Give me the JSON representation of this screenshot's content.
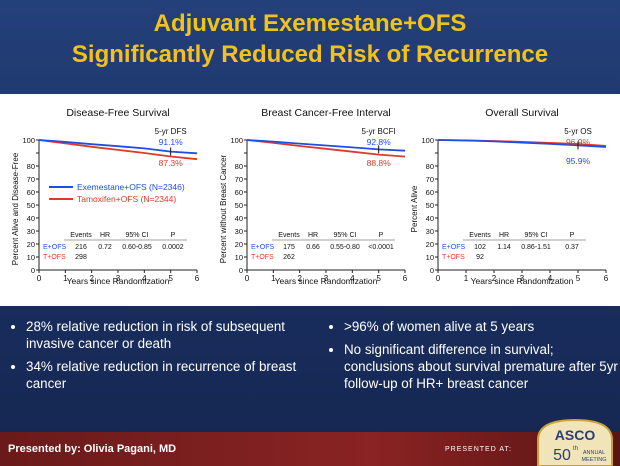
{
  "title_line1": "Adjuvant Exemestane+OFS",
  "title_line2": "Significantly Reduced Risk of Recurrence",
  "colors": {
    "title": "#f2c21b",
    "eofs": "#1f4fe0",
    "tofs": "#e0392b",
    "background": "#1f3569",
    "footer": "#7a1f1f"
  },
  "chart_data": [
    {
      "type": "line",
      "title": "Disease-Free Survival",
      "xlabel": "Years since Randomization",
      "ylabel": "Percent Alive and Disease-Free",
      "xlim": [
        0,
        6
      ],
      "ylim": [
        0,
        100
      ],
      "xticks": [
        "0",
        "1",
        "2",
        "3",
        "4",
        "5",
        "6"
      ],
      "yticks": [
        "0",
        "10",
        "20",
        "30",
        "40",
        "50",
        "60",
        "70",
        "80",
        "90",
        "100"
      ],
      "annotation_label": "5-yr DFS",
      "annotation_eofs": "91.1%",
      "annotation_tofs": "87.3%",
      "legend": [
        "Exemestane+OFS (N=2346)",
        "Tamoxifen+OFS (N=2344)"
      ],
      "series": [
        {
          "name": "E+OFS",
          "x": [
            0,
            1,
            2,
            3,
            4,
            5,
            6
          ],
          "y": [
            100,
            98.5,
            96.8,
            95.2,
            93.5,
            91.1,
            89.8
          ]
        },
        {
          "name": "T+OFS",
          "x": [
            0,
            1,
            2,
            3,
            4,
            5,
            6
          ],
          "y": [
            100,
            97.5,
            94.8,
            92.4,
            90.0,
            87.3,
            85.2
          ]
        }
      ],
      "table_header": [
        "Events",
        "HR",
        "95% CI",
        "P"
      ],
      "table_rows": [
        {
          "label": "E+OFS",
          "cells": [
            "216",
            "0.72",
            "0.60-0.85",
            "0.0002"
          ]
        },
        {
          "label": "T+OFS",
          "cells": [
            "298",
            "",
            "",
            ""
          ]
        }
      ]
    },
    {
      "type": "line",
      "title": "Breast Cancer-Free Interval",
      "xlabel": "Years since Randomization",
      "ylabel": "Percent without Breast Cancer",
      "xlim": [
        0,
        6
      ],
      "ylim": [
        0,
        100
      ],
      "xticks": [
        "0",
        "1",
        "2",
        "3",
        "4",
        "5",
        "6"
      ],
      "yticks": [
        "0",
        "10",
        "20",
        "30",
        "40",
        "50",
        "60",
        "70",
        "80",
        "90",
        "100"
      ],
      "annotation_label": "5-yr BCFI",
      "annotation_eofs": "92.8%",
      "annotation_tofs": "88.8%",
      "series": [
        {
          "name": "E+OFS",
          "x": [
            0,
            1,
            2,
            3,
            4,
            5,
            6
          ],
          "y": [
            100,
            98.8,
            97.2,
            95.8,
            94.3,
            92.8,
            91.8
          ]
        },
        {
          "name": "T+OFS",
          "x": [
            0,
            1,
            2,
            3,
            4,
            5,
            6
          ],
          "y": [
            100,
            97.8,
            95.4,
            93.2,
            91.0,
            88.8,
            87.2
          ]
        }
      ],
      "table_header": [
        "Events",
        "HR",
        "95% CI",
        "P"
      ],
      "table_rows": [
        {
          "label": "E+OFS",
          "cells": [
            "175",
            "0.66",
            "0.55-0.80",
            "<0.0001"
          ]
        },
        {
          "label": "T+OFS",
          "cells": [
            "262",
            "",
            "",
            ""
          ]
        }
      ]
    },
    {
      "type": "line",
      "title": "Overall Survival",
      "xlabel": "Years since Randomization",
      "ylabel": "Percent Alive",
      "xlim": [
        0,
        6
      ],
      "ylim": [
        0,
        100
      ],
      "xticks": [
        "0",
        "1",
        "2",
        "3",
        "4",
        "5",
        "6"
      ],
      "yticks": [
        "0",
        "10",
        "20",
        "30",
        "40",
        "50",
        "60",
        "70",
        "80",
        "90",
        "100"
      ],
      "annotation_label": "5-yr OS",
      "annotation_eofs": "95.9%",
      "annotation_tofs": "96.9%",
      "series": [
        {
          "name": "E+OFS",
          "x": [
            0,
            1,
            2,
            3,
            4,
            5,
            6
          ],
          "y": [
            100,
            99.6,
            98.9,
            98.0,
            97.0,
            95.9,
            94.6
          ]
        },
        {
          "name": "T+OFS",
          "x": [
            0,
            1,
            2,
            3,
            4,
            5,
            6
          ],
          "y": [
            100,
            99.7,
            99.2,
            98.5,
            97.8,
            96.9,
            95.5
          ]
        }
      ],
      "table_header": [
        "Events",
        "HR",
        "95% CI",
        "P"
      ],
      "table_rows": [
        {
          "label": "E+OFS",
          "cells": [
            "102",
            "1.14",
            "0.86-1.51",
            "0.37"
          ]
        },
        {
          "label": "T+OFS",
          "cells": [
            "92",
            "",
            "",
            ""
          ]
        }
      ]
    }
  ],
  "bullets_left": [
    "28% relative reduction in risk of subsequent invasive cancer or death",
    "34% relative reduction in recurrence of breast cancer"
  ],
  "bullets_right": [
    ">96% of women alive at 5 years",
    "No significant difference in survival; conclusions about survival premature after 5yr follow-up of HR+ breast cancer"
  ],
  "footer": {
    "presenter": "Presented by: Olivia Pagani, MD",
    "presented_at": "PRESENTED AT:",
    "badge_name": "ASCO",
    "badge_number": "50",
    "badge_suffix": "th",
    "badge_line1": "ANNUAL",
    "badge_line2": "MEETING"
  }
}
